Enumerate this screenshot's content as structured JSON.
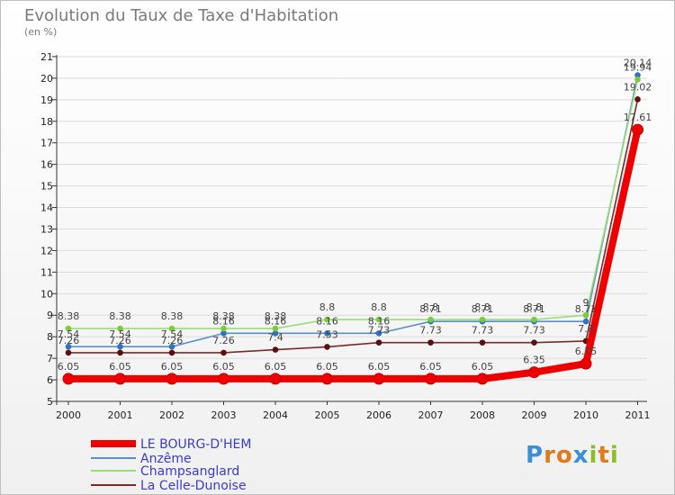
{
  "chart_data": {
    "type": "line",
    "title": "Evolution du Taux de Taxe d'Habitation",
    "ylabel": "(en %)",
    "x": [
      "2000",
      "2001",
      "2002",
      "2003",
      "2004",
      "2005",
      "2006",
      "2007",
      "2008",
      "2009",
      "2010",
      "2011"
    ],
    "yticks": [
      "5",
      "6",
      "7",
      "8",
      "9",
      "10",
      "11",
      "12",
      "13",
      "14",
      "15",
      "16",
      "17",
      "18",
      "19",
      "20",
      "21"
    ],
    "ylim": [
      5,
      21
    ],
    "grid": true,
    "series": [
      {
        "name": "LE BOURG-D'HEM",
        "color": "#ee0000",
        "point_color": "#ee0000",
        "values": [
          6.05,
          6.05,
          6.05,
          6.05,
          6.05,
          6.05,
          6.05,
          6.05,
          6.05,
          6.35,
          6.75,
          17.61
        ],
        "labels": [
          "6.05",
          "6.05",
          "6.05",
          "6.05",
          "6.05",
          "6.05",
          "6.05",
          "6.05",
          "6.05",
          "6.35",
          "6.75",
          "17.61"
        ]
      },
      {
        "name": "Anzême",
        "color": "#5b8fc5",
        "point_color": "#2e72c0",
        "values": [
          7.54,
          7.54,
          7.54,
          8.16,
          8.16,
          8.16,
          8.16,
          8.71,
          8.71,
          8.71,
          8.71,
          20.14
        ],
        "labels": [
          "7.54",
          "7.54",
          "7.54",
          "8.16",
          "8.16",
          "8.16",
          "8.16",
          "8.71",
          "8.71",
          "8.71",
          "8.71",
          "20.14"
        ]
      },
      {
        "name": "Champsanglard",
        "color": "#99dd77",
        "point_color": "#7ccc3a",
        "values": [
          8.38,
          8.38,
          8.38,
          8.38,
          8.38,
          8.8,
          8.8,
          8.8,
          8.8,
          8.8,
          9,
          19.94
        ],
        "labels": [
          "8.38",
          "8.38",
          "8.38",
          "8.38",
          "8.38",
          "8.8",
          "8.8",
          "8.8",
          "8.8",
          "8.8",
          "9",
          "19.94"
        ]
      },
      {
        "name": "La Celle-Dunoise",
        "color": "#7a2a2a",
        "point_color": "#5a1010",
        "values": [
          7.26,
          7.26,
          7.26,
          7.26,
          7.4,
          7.53,
          7.73,
          7.73,
          7.73,
          7.73,
          7.8,
          19.02
        ],
        "labels": [
          "7.26",
          "7.26",
          "7.26",
          "7.26",
          "7.4",
          "7.53",
          "7.73",
          "7.73",
          "7.73",
          "7.73",
          "7.8",
          "19.02"
        ]
      }
    ],
    "legend_position": "bottom-left"
  },
  "logo": {
    "letters": [
      "P",
      "r",
      "o",
      "x",
      "i",
      "t",
      "i"
    ],
    "colors": [
      "#3a8fd6",
      "#e07a1f",
      "#e07a1f",
      "#3a8fd6",
      "#8bbf2a",
      "#e07a1f",
      "#8bbf2a"
    ]
  }
}
